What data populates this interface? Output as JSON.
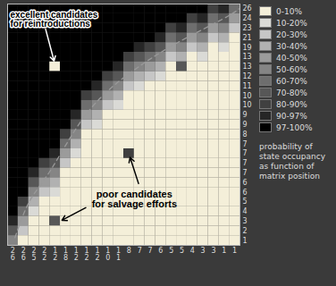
{
  "chart_data": {
    "type": "heatmap",
    "columns": [
      "26",
      "26",
      "25",
      "22",
      "12",
      "18",
      "12",
      "12",
      "12",
      "10",
      "11",
      "8",
      "7",
      "7",
      "6",
      "5",
      "5",
      "4",
      "3",
      "3",
      "1",
      "1"
    ],
    "rows": [
      "26",
      "24",
      "23",
      "21",
      "19",
      "13",
      "13",
      "12",
      "11",
      "10",
      "10",
      "9",
      "9",
      "8",
      "7",
      "7",
      "7",
      "7",
      "6",
      "6",
      "5",
      "4",
      "3",
      "2",
      "1"
    ],
    "cells": [
      [
        99,
        99,
        99,
        99,
        99,
        99,
        99,
        99,
        99,
        99,
        99,
        99,
        99,
        99,
        99,
        99,
        99,
        99,
        99,
        85,
        93,
        65
      ],
      [
        99,
        99,
        99,
        99,
        99,
        99,
        99,
        99,
        99,
        99,
        99,
        99,
        99,
        99,
        99,
        99,
        99,
        85,
        93,
        65,
        75,
        45
      ],
      [
        99,
        99,
        99,
        99,
        99,
        99,
        99,
        99,
        99,
        99,
        99,
        99,
        99,
        99,
        99,
        85,
        93,
        65,
        75,
        45,
        55,
        25
      ],
      [
        99,
        99,
        99,
        99,
        99,
        99,
        99,
        99,
        99,
        99,
        99,
        99,
        99,
        99,
        93,
        65,
        75,
        45,
        55,
        25,
        35,
        5
      ],
      [
        99,
        99,
        99,
        99,
        99,
        99,
        99,
        99,
        99,
        99,
        99,
        99,
        93,
        85,
        75,
        45,
        55,
        25,
        35,
        5,
        15,
        5
      ],
      [
        99,
        99,
        99,
        99,
        99,
        99,
        99,
        99,
        99,
        99,
        99,
        85,
        75,
        65,
        55,
        25,
        35,
        5,
        15,
        5,
        5,
        5
      ],
      [
        99,
        99,
        99,
        99,
        5,
        99,
        99,
        99,
        99,
        99,
        93,
        65,
        55,
        45,
        35,
        5,
        75,
        5,
        5,
        5,
        5,
        5
      ],
      [
        99,
        99,
        99,
        99,
        99,
        99,
        99,
        99,
        99,
        85,
        75,
        45,
        35,
        25,
        15,
        5,
        5,
        5,
        5,
        5,
        5,
        5
      ],
      [
        99,
        99,
        99,
        99,
        99,
        99,
        99,
        99,
        93,
        65,
        55,
        25,
        15,
        5,
        5,
        5,
        5,
        5,
        5,
        5,
        5,
        5
      ],
      [
        99,
        99,
        99,
        99,
        99,
        99,
        99,
        85,
        75,
        45,
        35,
        5,
        5,
        5,
        5,
        5,
        5,
        5,
        5,
        5,
        5,
        5
      ],
      [
        99,
        99,
        99,
        99,
        99,
        99,
        99,
        65,
        55,
        25,
        15,
        5,
        5,
        5,
        5,
        5,
        5,
        5,
        5,
        5,
        5,
        5
      ],
      [
        99,
        99,
        99,
        99,
        99,
        99,
        93,
        45,
        35,
        5,
        5,
        5,
        5,
        5,
        5,
        5,
        5,
        5,
        5,
        5,
        5,
        5
      ],
      [
        99,
        99,
        99,
        99,
        99,
        99,
        75,
        25,
        15,
        5,
        5,
        5,
        5,
        5,
        5,
        5,
        5,
        5,
        5,
        5,
        5,
        5
      ],
      [
        99,
        99,
        99,
        99,
        99,
        85,
        55,
        5,
        5,
        5,
        5,
        5,
        5,
        5,
        5,
        5,
        5,
        5,
        5,
        5,
        5,
        5
      ],
      [
        99,
        99,
        99,
        99,
        99,
        65,
        35,
        5,
        5,
        5,
        5,
        5,
        5,
        5,
        5,
        5,
        5,
        5,
        5,
        5,
        5,
        5
      ],
      [
        99,
        99,
        99,
        99,
        93,
        45,
        15,
        5,
        5,
        5,
        5,
        85,
        5,
        5,
        5,
        5,
        5,
        5,
        5,
        5,
        5,
        5
      ],
      [
        99,
        99,
        99,
        85,
        75,
        25,
        5,
        5,
        5,
        5,
        5,
        5,
        5,
        5,
        5,
        5,
        5,
        5,
        5,
        5,
        5,
        5
      ],
      [
        99,
        99,
        93,
        65,
        55,
        5,
        5,
        5,
        5,
        5,
        5,
        5,
        5,
        5,
        5,
        5,
        5,
        5,
        5,
        5,
        5,
        5
      ],
      [
        99,
        99,
        75,
        45,
        35,
        5,
        5,
        5,
        5,
        5,
        5,
        5,
        5,
        5,
        5,
        5,
        5,
        5,
        5,
        5,
        5,
        5
      ],
      [
        99,
        99,
        55,
        25,
        15,
        5,
        5,
        5,
        5,
        5,
        5,
        5,
        5,
        5,
        5,
        5,
        5,
        5,
        5,
        5,
        5,
        5
      ],
      [
        99,
        85,
        35,
        5,
        5,
        5,
        5,
        5,
        5,
        5,
        5,
        5,
        5,
        5,
        5,
        5,
        5,
        5,
        5,
        5,
        5,
        5
      ],
      [
        99,
        65,
        15,
        5,
        5,
        5,
        5,
        5,
        5,
        5,
        5,
        5,
        5,
        5,
        5,
        5,
        5,
        5,
        5,
        5,
        5,
        5
      ],
      [
        93,
        45,
        5,
        5,
        75,
        5,
        5,
        5,
        5,
        5,
        5,
        5,
        5,
        5,
        5,
        5,
        5,
        5,
        5,
        5,
        5,
        5
      ],
      [
        75,
        25,
        5,
        5,
        5,
        5,
        5,
        5,
        5,
        5,
        5,
        5,
        5,
        5,
        5,
        5,
        5,
        5,
        5,
        5,
        5,
        5
      ],
      [
        55,
        5,
        5,
        5,
        5,
        5,
        5,
        5,
        5,
        5,
        5,
        5,
        5,
        5,
        5,
        5,
        5,
        5,
        5,
        5,
        5,
        5
      ]
    ],
    "color_breaks": [
      10,
      20,
      30,
      40,
      50,
      60,
      70,
      80,
      90,
      97
    ],
    "colors": [
      "#f4efd9",
      "#dadad6",
      "#c6c6c6",
      "#b1b1b1",
      "#9b9b9b",
      "#858585",
      "#6e6e6e",
      "#575757",
      "#404040",
      "#262626",
      "#000000"
    ],
    "legend_labels": [
      "0-10%",
      "10-20%",
      "20-30%",
      "30-40%",
      "40-50%",
      "50-60%",
      "60-70%",
      "70-80%",
      "80-90%",
      "90-97%",
      "97-100%"
    ],
    "legend_title": "probability of state occupancy as function of matrix position",
    "boundary": {
      "x": [
        0.7,
        2.1,
        4.2,
        7.6,
        11.9,
        16.1,
        20.3,
        21.9
      ],
      "y": [
        0.8,
        4.6,
        8.0,
        13.8,
        18.1,
        21.0,
        23.4,
        24.5
      ],
      "line_style": "dashed"
    },
    "annotations": [
      {
        "lines": [
          "excellent candidates",
          "for reintroductions"
        ]
      },
      {
        "lines": [
          "poor candidates",
          "for salvage efforts"
        ]
      }
    ]
  }
}
